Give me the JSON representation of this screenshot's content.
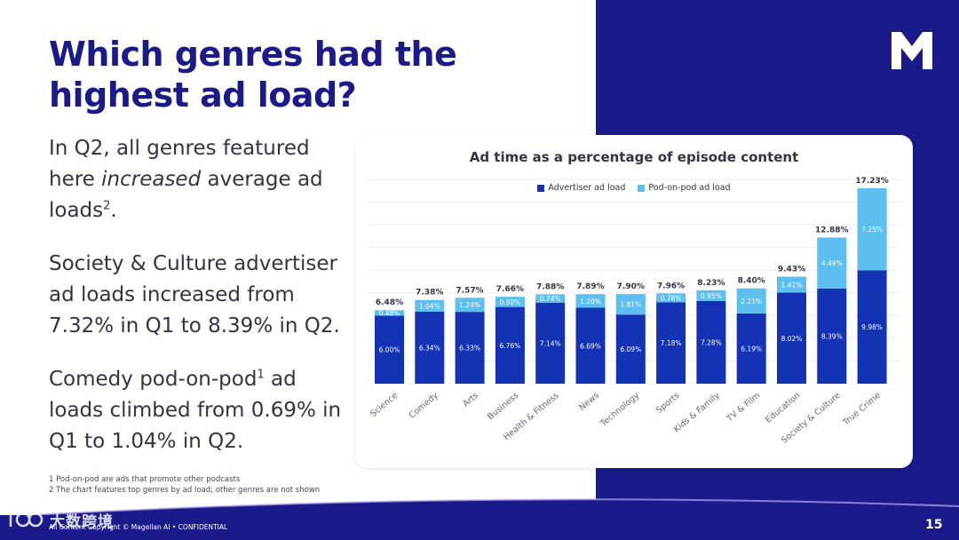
{
  "slide": {
    "title": "Which genres had the highest ad load?",
    "p1_before": "In Q2, all genres featured here ",
    "p1_italic": "increased",
    "p1_after": " average ad loads",
    "p1_sup": "2",
    "p1_end": ".",
    "p2": "Society & Culture advertiser ad loads increased from 7.32% in Q1 to 8.39% in Q2.",
    "p3_before": "Comedy pod-on-pod",
    "p3_sup": "1",
    "p3_after": " ad loads climbed from 0.69% in Q1 to 1.04% in Q2.",
    "footnote_1": "1 Pod-on-pod are ads that promote other podcasts",
    "footnote_2": "2 The chart features top genres by ad load; other genres are not shown",
    "confidential": "All Content Copyright © Magellan AI • CONFIDENTIAL",
    "page_number": "15",
    "watermark_text": "大数跨境",
    "logo_icon": "magellan-m-logo"
  },
  "colors": {
    "navy": "#1a1a8a",
    "advertiser": "#1432b4",
    "pod_on_pod": "#5cbfef",
    "text": "#333344"
  },
  "chart_data": {
    "type": "bar",
    "stacked": true,
    "title": "Ad time as a percentage of episode content",
    "legend_position": "top",
    "grid": true,
    "categories": [
      "Science",
      "Comedy",
      "Arts",
      "Business",
      "Health & Fitness",
      "News",
      "Technology",
      "Sports",
      "Kids & Family",
      "TV & Film",
      "Education",
      "Society & Culture",
      "True Crime"
    ],
    "series": [
      {
        "name": "Advertiser ad load",
        "values": [
          6.0,
          6.34,
          6.33,
          6.76,
          7.14,
          6.69,
          6.09,
          7.18,
          7.28,
          6.19,
          8.02,
          8.39,
          9.98
        ]
      },
      {
        "name": "Pod-on-pod ad load",
        "values": [
          0.48,
          1.04,
          1.24,
          0.9,
          0.74,
          1.2,
          1.81,
          0.78,
          0.95,
          2.21,
          1.41,
          4.49,
          7.25
        ]
      }
    ],
    "advertiser_labels": [
      "6.00%",
      "6.34%",
      "6.33%",
      "6.76%",
      "7.14%",
      "6.69%",
      "6.09%",
      "7.18%",
      "7.28%",
      "6.19%",
      "8.02%",
      "8.39%",
      "9.98%"
    ],
    "pod_labels": [
      "0.48%",
      "1.04%",
      "1.24%",
      "0.90%",
      "0.74%",
      "1.20%",
      "1.81%",
      "0.78%",
      "0.95%",
      "2.21%",
      "1.41%",
      "4.49%",
      "7.25%"
    ],
    "totals": [
      "6.48%",
      "7.38%",
      "7.57%",
      "7.66%",
      "7.88%",
      "7.89%",
      "7.90%",
      "7.96%",
      "8.23%",
      "8.40%",
      "9.43%",
      "12.88%",
      "17.23%"
    ],
    "ylim": [
      0,
      18
    ]
  }
}
